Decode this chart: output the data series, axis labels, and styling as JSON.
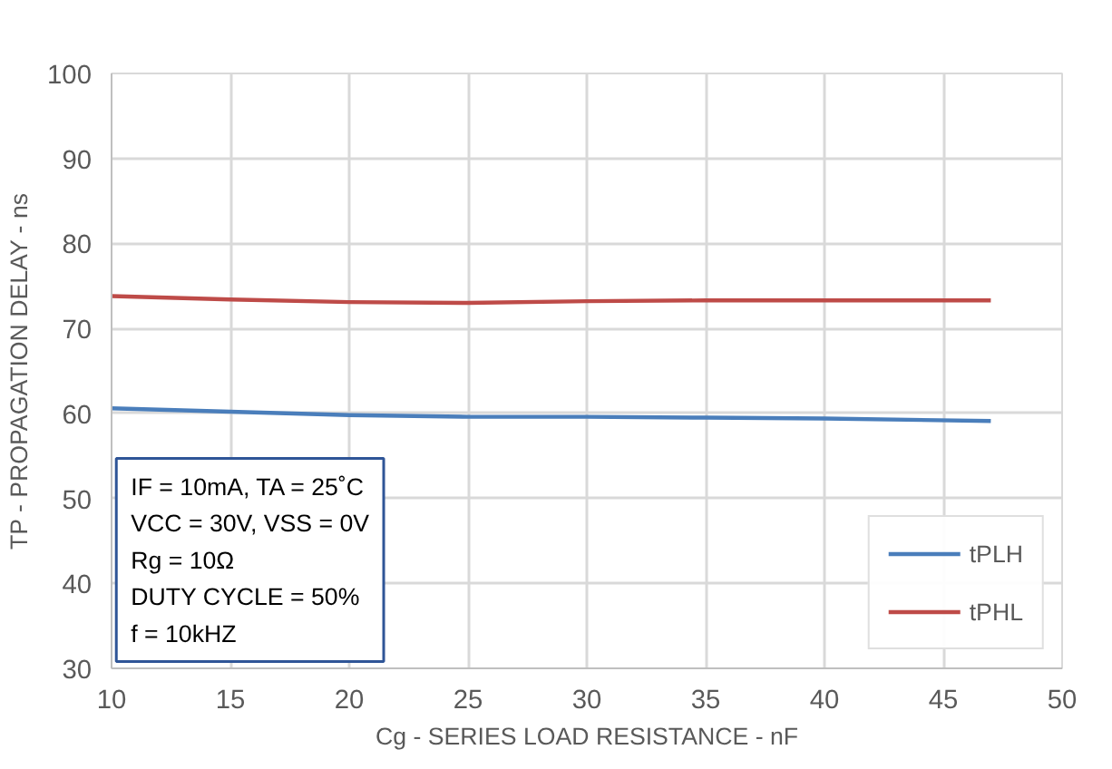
{
  "chart_data": {
    "type": "line",
    "xlabel": "Cg - SERIES LOAD RESISTANCE - nF",
    "ylabel": "TP - PROPAGATION DELAY - ns",
    "x": [
      10,
      15,
      20,
      25,
      30,
      35,
      40,
      47
    ],
    "series": [
      {
        "name": "tPLH",
        "color": "#4a7ebb",
        "values": [
          60.6,
          60.2,
          59.8,
          59.6,
          59.6,
          59.5,
          59.4,
          59.1
        ]
      },
      {
        "name": "tPHL",
        "color": "#be4b48",
        "values": [
          73.8,
          73.4,
          73.1,
          73.0,
          73.2,
          73.3,
          73.3,
          73.3
        ]
      }
    ],
    "xlim": [
      10,
      50
    ],
    "xticks": [
      10,
      15,
      20,
      25,
      30,
      35,
      40,
      45,
      50
    ],
    "ylim": [
      30,
      100
    ],
    "yticks": [
      30,
      40,
      50,
      60,
      70,
      80,
      90,
      100
    ],
    "annotations": [
      "IF = 10mA, TA = 25˚C",
      "VCC = 30V, VSS = 0V",
      "Rg = 10Ω",
      "DUTY CYCLE = 50%",
      "f = 10kHZ"
    ],
    "grid": true,
    "legend": "bottom right",
    "marker": "none",
    "line_style": "solid"
  }
}
